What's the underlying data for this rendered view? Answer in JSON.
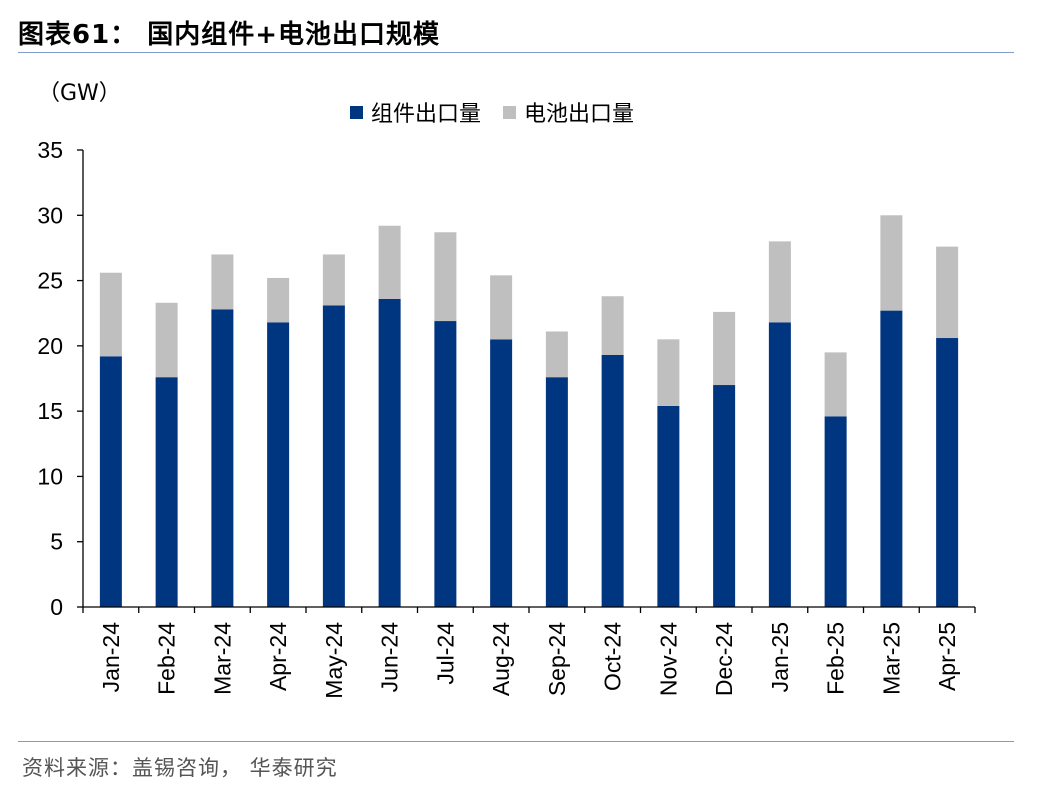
{
  "header": {
    "title": "图表61： 国内组件+电池出口规模",
    "unit": "（GW）"
  },
  "footer": {
    "source": "资料来源：盖锡咨询， 华泰研究"
  },
  "colors": {
    "module": "#003580",
    "cell": "#bfbfbf",
    "rule": "#7f9bc7"
  },
  "chart_data": {
    "type": "bar",
    "stacked": true,
    "categories": [
      "Jan-24",
      "Feb-24",
      "Mar-24",
      "Apr-24",
      "May-24",
      "Jun-24",
      "Jul-24",
      "Aug-24",
      "Sep-24",
      "Oct-24",
      "Nov-24",
      "Dec-24",
      "Jan-25",
      "Feb-25",
      "Mar-25",
      "Apr-25"
    ],
    "series": [
      {
        "name": "组件出口量",
        "values": [
          19.2,
          17.6,
          22.8,
          21.8,
          23.1,
          23.6,
          21.9,
          20.5,
          17.6,
          19.3,
          15.4,
          17.0,
          21.8,
          14.6,
          22.7,
          20.6
        ]
      },
      {
        "name": "电池出口量",
        "values": [
          6.4,
          5.7,
          4.2,
          3.4,
          3.9,
          5.6,
          6.8,
          4.9,
          3.5,
          4.5,
          5.1,
          5.6,
          6.2,
          4.9,
          7.3,
          7.0
        ]
      }
    ],
    "yticks": [
      "0",
      "5",
      "10",
      "15",
      "20",
      "25",
      "30",
      "35"
    ],
    "ylim": [
      0,
      35
    ],
    "legend_position": "top-center",
    "grid": false
  }
}
